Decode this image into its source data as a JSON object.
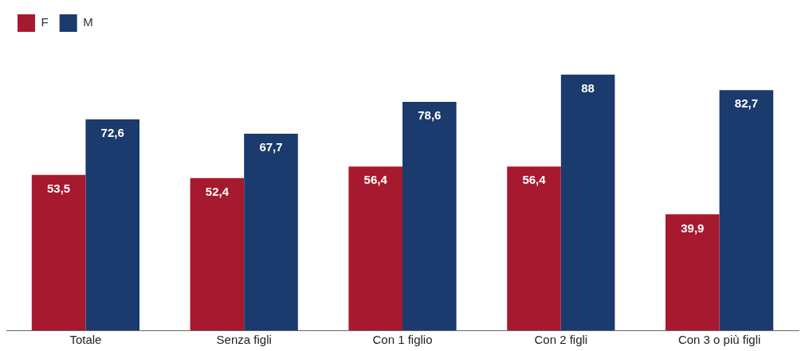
{
  "chart_data": {
    "type": "bar",
    "categories": [
      "Totale",
      "Senza figli",
      "Con 1 figlio",
      "Con 2 figli",
      "Con 3 o più figli"
    ],
    "series": [
      {
        "name": "F",
        "color": "#a6192e",
        "values": [
          53.5,
          52.4,
          56.4,
          56.4,
          39.9
        ],
        "value_labels": [
          "53,5",
          "52,4",
          "56,4",
          "56,4",
          "39,9"
        ]
      },
      {
        "name": "M",
        "color": "#1b3a6d",
        "values": [
          72.6,
          67.7,
          78.6,
          88,
          82.7
        ],
        "value_labels": [
          "72,6",
          "67,7",
          "78,6",
          "88",
          "82,7"
        ]
      }
    ],
    "tick_labels": "x",
    "grid": false,
    "legend": "top left"
  }
}
